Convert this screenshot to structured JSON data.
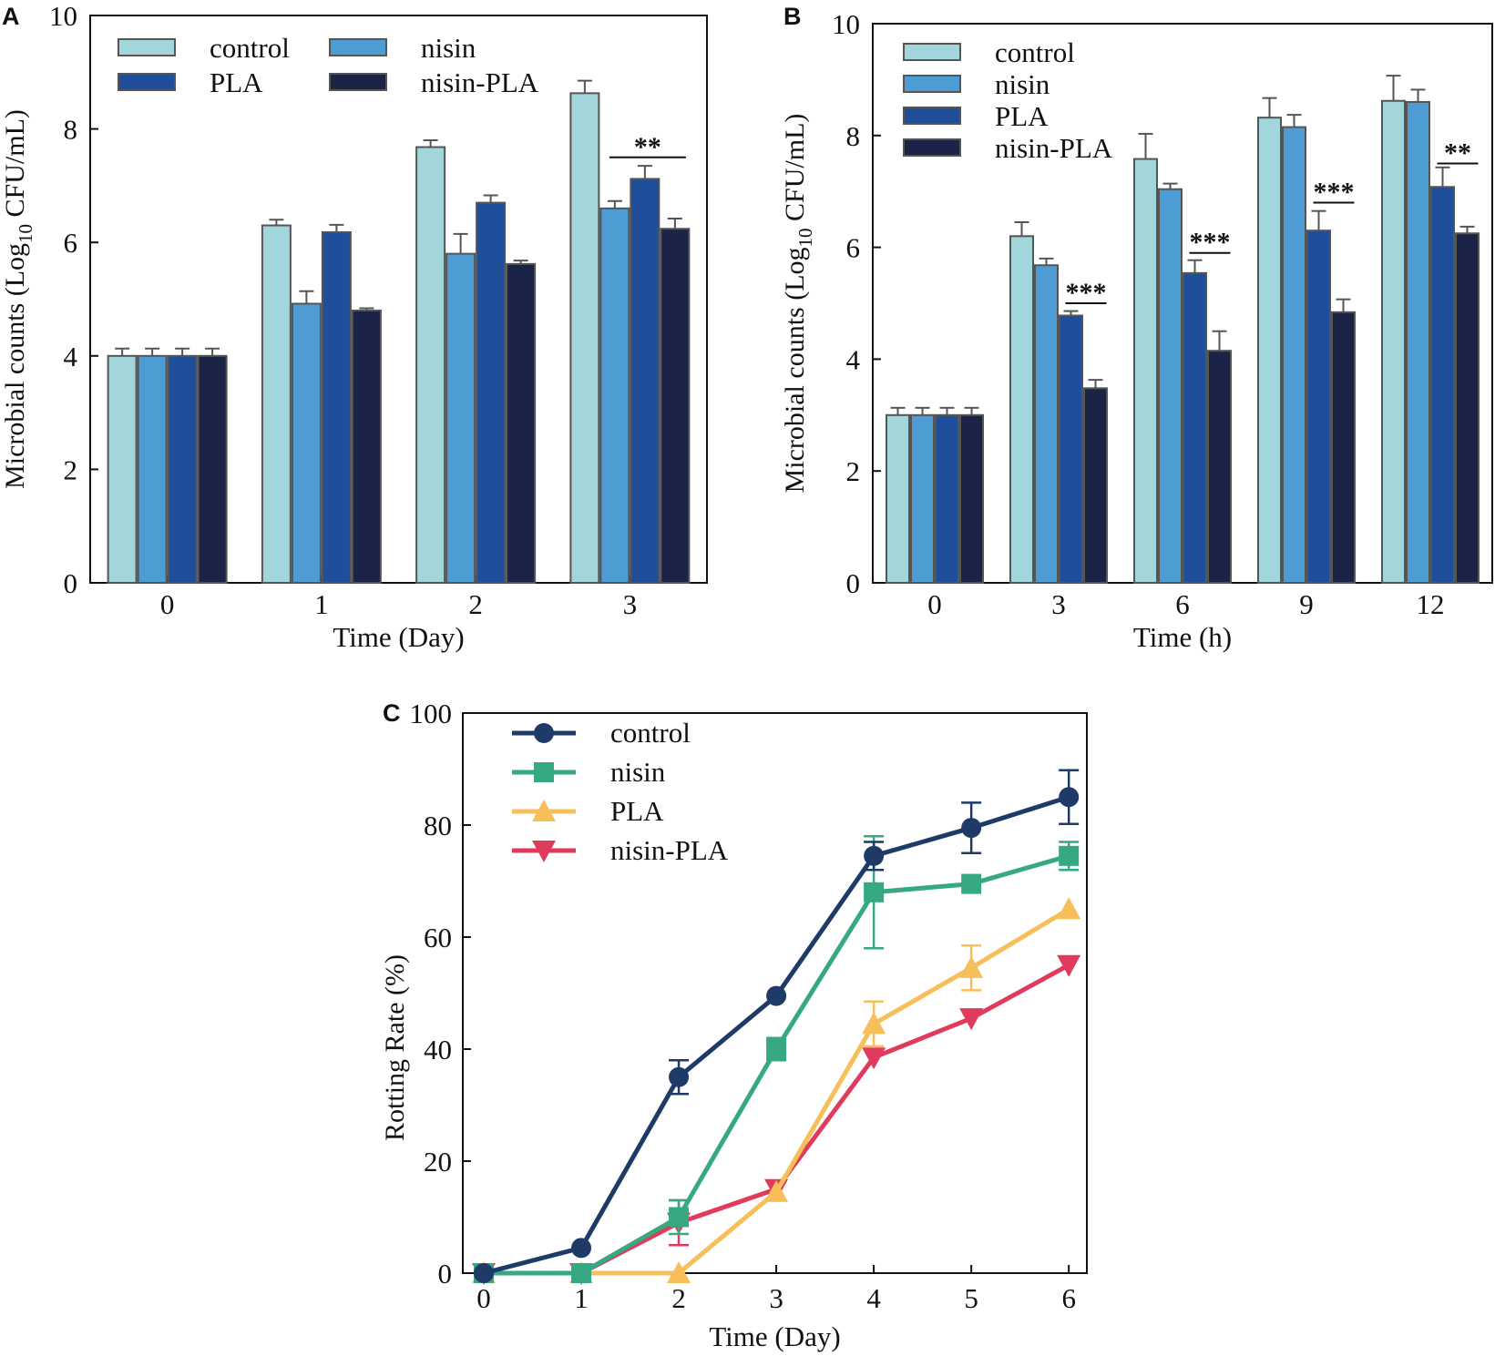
{
  "colors": {
    "bar_control": "#a2d6da",
    "bar_nisin": "#4d9dd4",
    "bar_PLA": "#1f4f9b",
    "bar_nisin_PLA": "#1b2447",
    "line_control": "#1e3a66",
    "line_nisin": "#36a882",
    "line_PLA": "#f6bf5a",
    "line_nisin_PLA": "#e03a5c",
    "axis": "#111111"
  },
  "chart_data": [
    {
      "panel": "A",
      "type": "bar",
      "xlabel": "Time (Day)",
      "ylabel_prefix": "Microbial counts (Log",
      "ylabel_sub": "10",
      "ylabel_suffix": " CFU/mL)",
      "ylim": [
        0,
        10
      ],
      "yticks": [
        "0",
        "2",
        "4",
        "6",
        "8",
        "10"
      ],
      "categories": [
        "0",
        "1",
        "2",
        "3"
      ],
      "legend_columns": 2,
      "legend_placement": "top-left",
      "series": [
        {
          "name": "control",
          "color_key": "bar_control",
          "values": [
            4.0,
            6.3,
            7.68,
            8.63
          ],
          "errors": [
            0.13,
            0.1,
            0.12,
            0.22
          ]
        },
        {
          "name": "nisin",
          "color_key": "bar_nisin",
          "values": [
            4.0,
            4.92,
            5.8,
            6.6
          ],
          "errors": [
            0.13,
            0.22,
            0.35,
            0.13
          ]
        },
        {
          "name": "PLA",
          "color_key": "bar_PLA",
          "values": [
            4.0,
            6.18,
            6.7,
            7.12
          ],
          "errors": [
            0.13,
            0.13,
            0.13,
            0.23
          ]
        },
        {
          "name": "nisin-PLA",
          "color_key": "bar_nisin_PLA",
          "values": [
            4.0,
            4.8,
            5.62,
            6.24
          ],
          "errors": [
            0.13,
            0.04,
            0.06,
            0.18
          ]
        }
      ],
      "annotations": [
        {
          "category": "3",
          "text": "**",
          "from_series": 1,
          "to_series": 3,
          "y": 7.5
        }
      ]
    },
    {
      "panel": "B",
      "type": "bar",
      "xlabel": "Time (h)",
      "ylabel_prefix": "Microbial counts (Log",
      "ylabel_sub": "10",
      "ylabel_suffix": " CFU/mL)",
      "ylim": [
        0,
        10
      ],
      "yticks": [
        "0",
        "2",
        "4",
        "6",
        "8",
        "10"
      ],
      "categories": [
        "0",
        "3",
        "6",
        "9",
        "12"
      ],
      "legend_columns": 1,
      "legend_placement": "top-left",
      "series": [
        {
          "name": "control",
          "color_key": "bar_control",
          "values": [
            3.0,
            6.2,
            7.58,
            8.32,
            8.62
          ],
          "errors": [
            0.13,
            0.25,
            0.45,
            0.35,
            0.45
          ]
        },
        {
          "name": "nisin",
          "color_key": "bar_nisin",
          "values": [
            3.0,
            5.68,
            7.04,
            8.15,
            8.6
          ],
          "errors": [
            0.13,
            0.12,
            0.1,
            0.22,
            0.22
          ]
        },
        {
          "name": "PLA",
          "color_key": "bar_PLA",
          "values": [
            3.0,
            4.78,
            5.54,
            6.3,
            7.08
          ],
          "errors": [
            0.13,
            0.08,
            0.23,
            0.35,
            0.35
          ]
        },
        {
          "name": "nisin-PLA",
          "color_key": "bar_nisin_PLA",
          "values": [
            3.0,
            3.48,
            4.15,
            4.84,
            6.25
          ],
          "errors": [
            0.13,
            0.15,
            0.35,
            0.23,
            0.12
          ]
        }
      ],
      "annotations": [
        {
          "category": "3",
          "text": "***",
          "from_series": 2,
          "to_series": 3,
          "y": 5.0
        },
        {
          "category": "6",
          "text": "***",
          "from_series": 2,
          "to_series": 3,
          "y": 5.9
        },
        {
          "category": "9",
          "text": "***",
          "from_series": 2,
          "to_series": 3,
          "y": 6.8
        },
        {
          "category": "12",
          "text": "**",
          "from_series": 2,
          "to_series": 3,
          "y": 7.5
        }
      ]
    },
    {
      "panel": "C",
      "type": "line",
      "xlabel": "Time (Day)",
      "ylabel": "Rotting Rate (%)",
      "ylim": [
        0,
        100
      ],
      "xlim": [
        0,
        6.4
      ],
      "yticks": [
        "0",
        "20",
        "40",
        "60",
        "80",
        "100"
      ],
      "x": [
        0,
        1,
        2,
        3,
        4,
        5,
        6
      ],
      "xticks": [
        "0",
        "1",
        "2",
        "3",
        "4",
        "5",
        "6"
      ],
      "legend_placement": "top-left",
      "series": [
        {
          "name": "control",
          "marker": "circle",
          "color_key": "line_control",
          "values": [
            0,
            4.5,
            35,
            49.5,
            74.5,
            79.5,
            85
          ],
          "errors": [
            0,
            0,
            3,
            0,
            2.5,
            4.5,
            4.8
          ]
        },
        {
          "name": "nisin",
          "marker": "square",
          "color_key": "line_nisin",
          "values": [
            0,
            0,
            10,
            40,
            68,
            69.5,
            74.5
          ],
          "errors": [
            0,
            0,
            3,
            2,
            10,
            0,
            2.5
          ]
        },
        {
          "name": "PLA",
          "marker": "triangle-up",
          "color_key": "line_PLA",
          "values": [
            0,
            0,
            0,
            14.5,
            44.5,
            54.5,
            65
          ],
          "errors": [
            0,
            0,
            0,
            0,
            4,
            4,
            0
          ]
        },
        {
          "name": "nisin-PLA",
          "marker": "triangle-down",
          "color_key": "line_nisin_PLA",
          "values": [
            0,
            0,
            9,
            15,
            38.5,
            45.5,
            55
          ],
          "errors": [
            0,
            0,
            4,
            0,
            0,
            0,
            0
          ]
        }
      ]
    }
  ]
}
